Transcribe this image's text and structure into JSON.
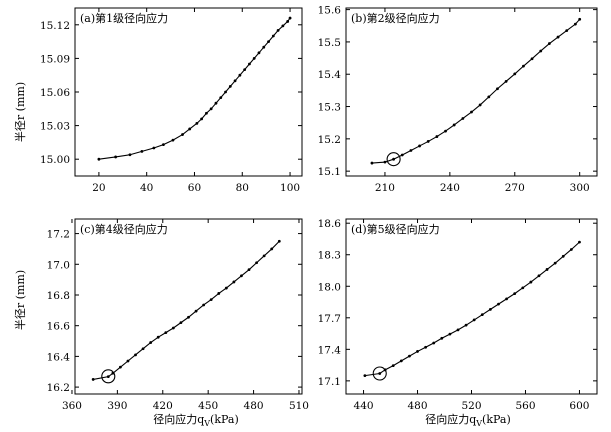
{
  "figure": {
    "ylabel": "半径r (mm)",
    "xlabel": "径向应力q",
    "xlabel_sub": "V",
    "xlabel_unit": "(kPa)"
  },
  "chart_data": [
    {
      "type": "line",
      "title": "(a)第1级径向应力",
      "xlim": [
        10,
        105
      ],
      "ylim": [
        14.985,
        15.135
      ],
      "xticks": [
        20,
        40,
        60,
        80,
        100
      ],
      "yticks": [
        15.0,
        15.03,
        15.06,
        15.09,
        15.12
      ],
      "ytick_labels": [
        "15.00",
        "15.03",
        "15.06",
        "15.09",
        "15.12"
      ],
      "circle_at": null,
      "series": [
        {
          "x": [
            20,
            27,
            33,
            38,
            43,
            47,
            51,
            55,
            58,
            61,
            63,
            65,
            67,
            69,
            71,
            73,
            75,
            77,
            79,
            81,
            83,
            85,
            87,
            89,
            91,
            93,
            95,
            97,
            99,
            100
          ],
          "y": [
            15.0,
            15.002,
            15.004,
            15.007,
            15.01,
            15.013,
            15.017,
            15.022,
            15.027,
            15.032,
            15.036,
            15.041,
            15.045,
            15.05,
            15.055,
            15.06,
            15.065,
            15.07,
            15.075,
            15.08,
            15.085,
            15.09,
            15.095,
            15.1,
            15.105,
            15.11,
            15.115,
            15.119,
            15.123,
            15.126
          ]
        }
      ]
    },
    {
      "type": "line",
      "title": "(b)第2级径向应力",
      "xlim": [
        192,
        308
      ],
      "ylim": [
        15.085,
        15.605
      ],
      "xticks": [
        210,
        240,
        270,
        300
      ],
      "yticks": [
        15.1,
        15.2,
        15.3,
        15.4,
        15.5,
        15.6
      ],
      "ytick_labels": [
        "15.1",
        "15.2",
        "15.3",
        "15.4",
        "15.5",
        "15.6"
      ],
      "circle_at": [
        214,
        15.137
      ],
      "series": [
        {
          "x": [
            204,
            210,
            214,
            218,
            222,
            226,
            230,
            234,
            238,
            242,
            246,
            250,
            254,
            258,
            262,
            266,
            270,
            274,
            278,
            282,
            286,
            290,
            294,
            298,
            300
          ],
          "y": [
            15.125,
            15.128,
            15.137,
            15.15,
            15.164,
            15.178,
            15.192,
            15.207,
            15.224,
            15.243,
            15.263,
            15.283,
            15.305,
            15.33,
            15.355,
            15.378,
            15.401,
            15.425,
            15.448,
            15.472,
            15.495,
            15.515,
            15.535,
            15.555,
            15.57
          ]
        }
      ]
    },
    {
      "type": "line",
      "title": "(c)第4级径向应力",
      "xlim": [
        362,
        512
      ],
      "ylim": [
        16.155,
        17.295
      ],
      "xticks": [
        360,
        390,
        420,
        450,
        480,
        510
      ],
      "yticks": [
        16.2,
        16.4,
        16.6,
        16.8,
        17.0,
        17.2
      ],
      "ytick_labels": [
        "16.2",
        "16.4",
        "16.6",
        "16.8",
        "17.0",
        "17.2"
      ],
      "circle_at": [
        384,
        16.27
      ],
      "series": [
        {
          "x": [
            374,
            384,
            387,
            392,
            397,
            402,
            407,
            412,
            417,
            422,
            427,
            432,
            437,
            442,
            447,
            452,
            457,
            462,
            467,
            472,
            477,
            482,
            487,
            492,
            497
          ],
          "y": [
            16.25,
            16.268,
            16.29,
            16.33,
            16.37,
            16.41,
            16.45,
            16.49,
            16.525,
            16.555,
            16.585,
            16.62,
            16.655,
            16.695,
            16.735,
            16.77,
            16.81,
            16.845,
            16.885,
            16.925,
            16.965,
            17.01,
            17.055,
            17.1,
            17.15
          ]
        }
      ]
    },
    {
      "type": "line",
      "title": "(d)第5级径向应力",
      "xlim": [
        427,
        613
      ],
      "ylim": [
        16.975,
        18.64
      ],
      "xticks": [
        440,
        480,
        520,
        560,
        600
      ],
      "yticks": [
        17.1,
        17.4,
        17.7,
        18.0,
        18.3,
        18.6
      ],
      "ytick_labels": [
        "17.1",
        "17.4",
        "17.7",
        "18.0",
        "18.3",
        "18.6"
      ],
      "circle_at": [
        452,
        17.17
      ],
      "series": [
        {
          "x": [
            441,
            452,
            456,
            462,
            468,
            474,
            480,
            486,
            492,
            498,
            504,
            510,
            516,
            522,
            528,
            534,
            540,
            546,
            552,
            558,
            564,
            570,
            576,
            582,
            588,
            594,
            600
          ],
          "y": [
            17.15,
            17.17,
            17.205,
            17.245,
            17.29,
            17.335,
            17.38,
            17.42,
            17.46,
            17.505,
            17.545,
            17.585,
            17.63,
            17.68,
            17.73,
            17.78,
            17.83,
            17.88,
            17.93,
            17.985,
            18.04,
            18.1,
            18.16,
            18.22,
            18.285,
            18.35,
            18.42
          ]
        }
      ]
    }
  ]
}
